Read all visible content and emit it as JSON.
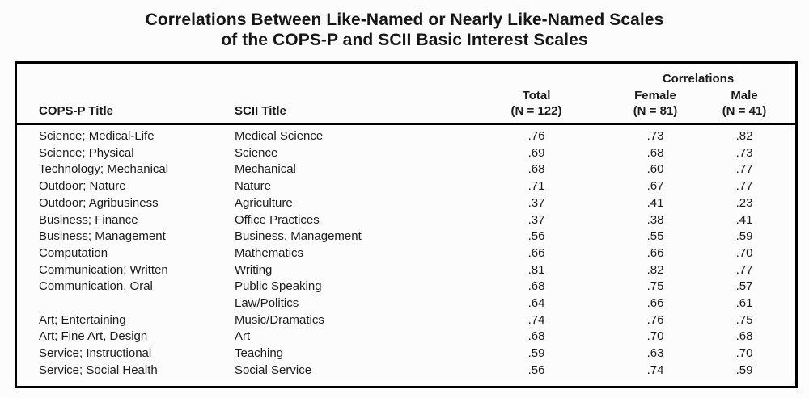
{
  "title": {
    "line1": "Correlations Between Like-Named or Nearly Like-Named Scales",
    "line2": "of the COPS-P and SCII Basic Interest Scales"
  },
  "colors": {
    "background": "#fcfcfc",
    "text": "#1b1b1b",
    "border": "#000000"
  },
  "table": {
    "group_header": "Correlations",
    "columns": [
      {
        "label": "COPS-P Title",
        "sub": ""
      },
      {
        "label": "SCII Title",
        "sub": ""
      },
      {
        "label": "Total",
        "sub": "(N = 122)"
      },
      {
        "label": "Female",
        "sub": "(N = 81)"
      },
      {
        "label": "Male",
        "sub": "(N = 41)"
      }
    ],
    "rows": [
      {
        "cops_p": "Science; Medical-Life",
        "scii": "Medical Science",
        "total": ".76",
        "female": ".73",
        "male": ".82"
      },
      {
        "cops_p": "Science; Physical",
        "scii": "Science",
        "total": ".69",
        "female": ".68",
        "male": ".73"
      },
      {
        "cops_p": "Technology; Mechanical",
        "scii": "Mechanical",
        "total": ".68",
        "female": ".60",
        "male": ".77"
      },
      {
        "cops_p": "Outdoor; Nature",
        "scii": "Nature",
        "total": ".71",
        "female": ".67",
        "male": ".77"
      },
      {
        "cops_p": "Outdoor; Agribusiness",
        "scii": "Agriculture",
        "total": ".37",
        "female": ".41",
        "male": ".23"
      },
      {
        "cops_p": "Business; Finance",
        "scii": "Office Practices",
        "total": ".37",
        "female": ".38",
        "male": ".41"
      },
      {
        "cops_p": "Business; Management",
        "scii": "Business, Management",
        "total": ".56",
        "female": ".55",
        "male": ".59"
      },
      {
        "cops_p": "Computation",
        "scii": "Mathematics",
        "total": ".66",
        "female": ".66",
        "male": ".70"
      },
      {
        "cops_p": "Communication; Written",
        "scii": "Writing",
        "total": ".81",
        "female": ".82",
        "male": ".77"
      },
      {
        "cops_p": "Communication, Oral",
        "scii": "Public Speaking",
        "total": ".68",
        "female": ".75",
        "male": ".57"
      },
      {
        "cops_p": "",
        "scii": "Law/Politics",
        "total": ".64",
        "female": ".66",
        "male": ".61"
      },
      {
        "cops_p": "Art; Entertaining",
        "scii": "Music/Dramatics",
        "total": ".74",
        "female": ".76",
        "male": ".75"
      },
      {
        "cops_p": "Art; Fine Art, Design",
        "scii": "Art",
        "total": ".68",
        "female": ".70",
        "male": ".68"
      },
      {
        "cops_p": "Service; Instructional",
        "scii": "Teaching",
        "total": ".59",
        "female": ".63",
        "male": ".70"
      },
      {
        "cops_p": "Service; Social Health",
        "scii": "Social Service",
        "total": ".56",
        "female": ".74",
        "male": ".59"
      }
    ]
  }
}
